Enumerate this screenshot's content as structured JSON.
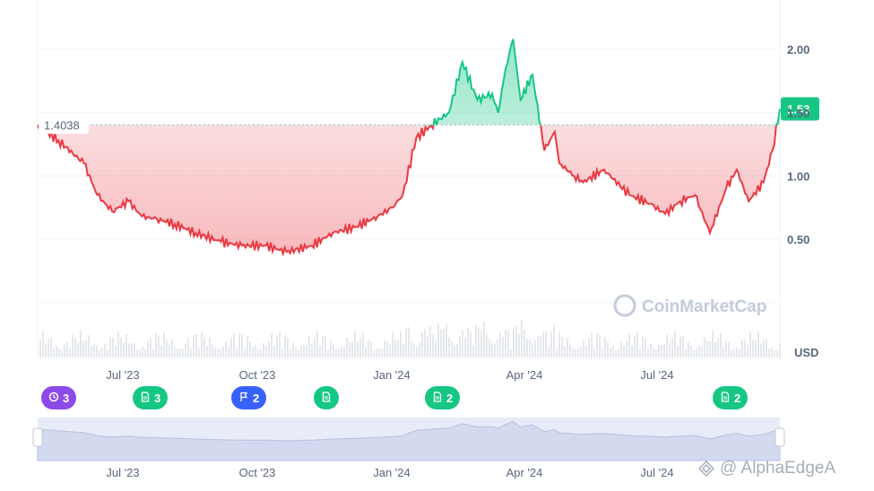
{
  "brand": {
    "logo_text": "CoinMarketCap",
    "watermark": "@ AlphaEdgeA"
  },
  "price_axis": {
    "currency": "USD",
    "ticks": [
      "2.00",
      "1.50",
      "1.00",
      "0.50"
    ],
    "tick_values": [
      2.0,
      1.5,
      1.0,
      0.5
    ]
  },
  "reference_price": {
    "label": "1.4038",
    "value": 1.4038
  },
  "current_price": {
    "label": "1.53",
    "value": 1.53
  },
  "x_axis_labels": [
    "Jul '23",
    "Oct '23",
    "Jan '24",
    "Apr '24",
    "Jul '24"
  ],
  "navigator_labels": [
    "Jul '23",
    "Oct '23",
    "Jan '24",
    "Apr '24",
    "Jul '24"
  ],
  "events": [
    {
      "icon": "history-icon",
      "count": "3",
      "color": "#8c4be8"
    },
    {
      "icon": "document-icon",
      "count": "3",
      "color": "#16c784"
    },
    {
      "icon": "flag-icon",
      "count": "2",
      "color": "#3861fb"
    },
    {
      "icon": "document-icon",
      "count": "",
      "color": "#16c784"
    },
    {
      "icon": "document-icon",
      "count": "2",
      "color": "#16c784"
    },
    {
      "icon": "document-icon",
      "count": "2",
      "color": "#16c784"
    }
  ],
  "colors": {
    "up": "#16c784",
    "down": "#ea3943",
    "grid": "#eff2f5",
    "volume": "#e5e8ec",
    "navigator_fill": "#e8ebf8"
  },
  "chart_data": {
    "type": "area",
    "title": "",
    "xlabel": "",
    "ylabel": "USD",
    "baseline": 1.4038,
    "ylim": [
      0,
      2.3
    ],
    "grid": true,
    "x": [
      "2023-05-01",
      "2023-05-15",
      "2023-06-01",
      "2023-06-10",
      "2023-06-20",
      "2023-07-01",
      "2023-07-10",
      "2023-07-20",
      "2023-08-01",
      "2023-08-15",
      "2023-09-01",
      "2023-09-15",
      "2023-10-01",
      "2023-10-15",
      "2023-11-01",
      "2023-11-15",
      "2023-12-01",
      "2023-12-15",
      "2023-12-25",
      "2024-01-01",
      "2024-01-10",
      "2024-01-20",
      "2024-02-01",
      "2024-02-10",
      "2024-02-20",
      "2024-03-01",
      "2024-03-05",
      "2024-03-10",
      "2024-03-15",
      "2024-03-20",
      "2024-03-28",
      "2024-04-05",
      "2024-04-12",
      "2024-04-15",
      "2024-04-25",
      "2024-05-01",
      "2024-05-15",
      "2024-06-01",
      "2024-06-15",
      "2024-06-25",
      "2024-07-05",
      "2024-07-15",
      "2024-07-25",
      "2024-08-05",
      "2024-08-12",
      "2024-08-20",
      "2024-08-30",
      "2024-09-05",
      "2024-09-10"
    ],
    "series": [
      {
        "values": [
          1.4,
          1.28,
          1.1,
          0.85,
          0.72,
          0.8,
          0.68,
          0.66,
          0.62,
          0.55,
          0.48,
          0.45,
          0.45,
          0.4,
          0.45,
          0.55,
          0.6,
          0.68,
          0.75,
          0.85,
          1.3,
          1.4,
          1.5,
          1.9,
          1.6,
          1.65,
          1.5,
          1.85,
          2.08,
          1.6,
          1.8,
          1.2,
          1.35,
          1.1,
          1.0,
          0.95,
          1.05,
          0.85,
          0.78,
          0.7,
          0.8,
          0.85,
          0.55,
          0.9,
          1.05,
          0.8,
          0.95,
          1.2,
          1.53
        ]
      }
    ]
  }
}
